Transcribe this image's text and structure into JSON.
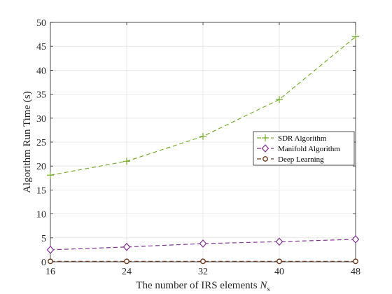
{
  "chart_data": {
    "type": "line",
    "xlabel_main": "The number of IRS elements ",
    "xlabel_symbol": "N",
    "xlabel_sub": "s",
    "ylabel": "Algorithm Run Time (s)",
    "x": [
      16,
      24,
      32,
      40,
      48
    ],
    "xlim": [
      16,
      48
    ],
    "ylim": [
      0,
      50
    ],
    "xticks": [
      "16",
      "24",
      "32",
      "40",
      "48"
    ],
    "yticks": [
      "0",
      "5",
      "10",
      "15",
      "20",
      "25",
      "30",
      "35",
      "40",
      "45",
      "50"
    ],
    "grid": true,
    "legend_position": "right",
    "series": [
      {
        "name": "SDR Algorithm",
        "values": [
          18.1,
          21.0,
          26.2,
          33.9,
          47.0
        ],
        "color": "#77AC30",
        "marker": "plus"
      },
      {
        "name": "Manifold Algorithm",
        "values": [
          2.5,
          3.1,
          3.8,
          4.2,
          4.7
        ],
        "color": "#7E2F8E",
        "marker": "diamond"
      },
      {
        "name": "Deep Learning",
        "values": [
          0.1,
          0.1,
          0.1,
          0.1,
          0.1
        ],
        "color": "#6E3B1E",
        "marker": "circle"
      }
    ]
  }
}
